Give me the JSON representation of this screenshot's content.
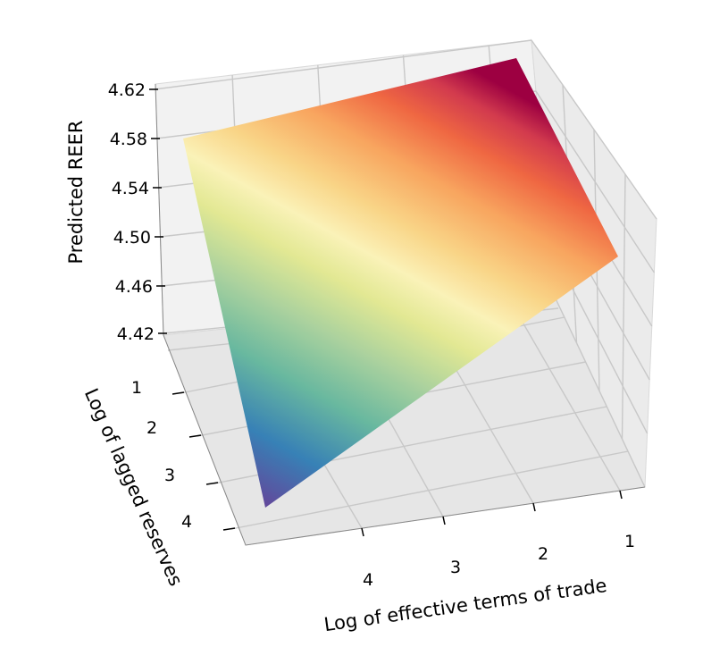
{
  "chart_data": {
    "type": "surface3d",
    "zlabel": "Predicted REER",
    "ylabel": "Log of lagged reserves",
    "xlabel": "Log of effective terms of trade",
    "z_ticks": [
      "4.42",
      "4.46",
      "4.50",
      "4.54",
      "4.58",
      "4.62"
    ],
    "y_ticks": [
      "1",
      "2",
      "3",
      "4"
    ],
    "x_ticks": [
      "4",
      "3",
      "2",
      "1"
    ],
    "zlim": [
      4.42,
      4.62
    ],
    "colormap": "Spectral",
    "surface_corners": [
      {
        "terms_of_trade": 4.6,
        "reserves": 0.6,
        "reer": 4.58
      },
      {
        "terms_of_trade": 0.6,
        "reserves": 0.6,
        "reer": 4.61
      },
      {
        "terms_of_trade": 0.6,
        "reserves": 4.6,
        "reer": 4.51
      },
      {
        "terms_of_trade": 4.6,
        "reserves": 4.6,
        "reer": 4.36
      }
    ],
    "grid": true
  }
}
